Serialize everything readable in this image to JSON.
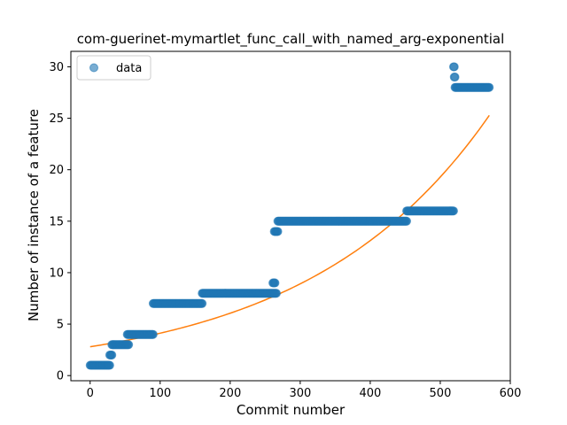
{
  "chart_data": {
    "type": "scatter",
    "title": "com-guerinet-mymartlet_func_call_with_named_arg-exponential",
    "xlabel": "Commit number",
    "ylabel": "Number of instance of a feature",
    "xlim": [
      -27.5,
      600
    ],
    "ylim": [
      -0.5,
      31.5
    ],
    "xticks": [
      0,
      100,
      200,
      300,
      400,
      500,
      600
    ],
    "yticks": [
      0,
      5,
      10,
      15,
      20,
      25,
      30
    ],
    "grid": false,
    "legend": {
      "position": "top-left",
      "entries": [
        "data"
      ]
    },
    "colors": {
      "data": "#1f77b4",
      "fit": "#ff7f0e"
    },
    "series": [
      {
        "name": "data",
        "kind": "scatter",
        "segments": [
          {
            "x_start": 0,
            "x_end": 28,
            "y": 1
          },
          {
            "x_start": 28,
            "x_end": 31,
            "y": 2
          },
          {
            "x_start": 31,
            "x_end": 55,
            "y": 3
          },
          {
            "x_start": 53,
            "x_end": 90,
            "y": 4
          },
          {
            "x_start": 90,
            "x_end": 160,
            "y": 7
          },
          {
            "x_start": 160,
            "x_end": 266,
            "y": 8
          },
          {
            "x_start": 261,
            "x_end": 264,
            "y": 9
          },
          {
            "x_start": 263,
            "x_end": 268,
            "y": 14
          },
          {
            "x_start": 268,
            "x_end": 452,
            "y": 15
          },
          {
            "x_start": 452,
            "x_end": 519,
            "y": 16
          },
          {
            "x_start": 519,
            "x_end": 520,
            "y": 30
          },
          {
            "x_start": 520,
            "x_end": 521,
            "y": 29
          },
          {
            "x_start": 521,
            "x_end": 570,
            "y": 28
          }
        ]
      },
      {
        "name": "",
        "kind": "line",
        "model": "exponential",
        "a": 2.8,
        "b": 0.00386,
        "x_range": [
          0,
          570
        ]
      }
    ]
  }
}
